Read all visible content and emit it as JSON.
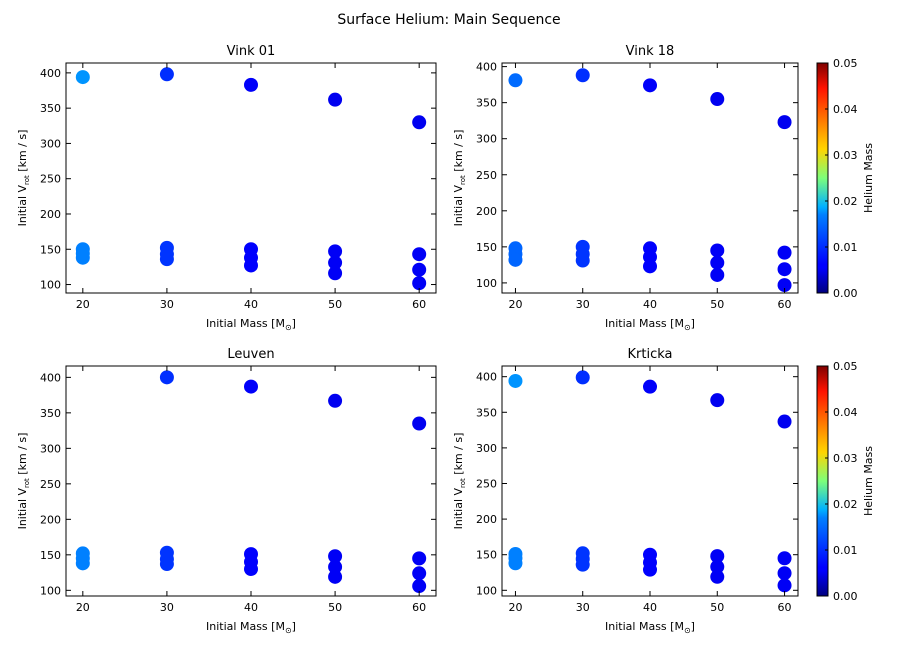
{
  "figure": {
    "suptitle": "Surface Helium: Main Sequence",
    "xlabel": "Initial Mass [M",
    "xlabel_sym": "⊙",
    "xlabel_close": "]",
    "ylabel_pre": "Initial V",
    "ylabel_sub": "rot",
    "ylabel_post": " [km / s]",
    "colorbar_label": "Helium Mass",
    "colorbar_ticks": [
      "0.00",
      "0.01",
      "0.02",
      "0.03",
      "0.04",
      "0.05"
    ],
    "colormap": "jet",
    "colorbar_range": [
      0.0,
      0.05
    ]
  },
  "chart_data": [
    {
      "type": "scatter",
      "title": "Vink 01",
      "xlabel": "Initial Mass [M⊙]",
      "ylabel": "Initial Vrot [km / s]",
      "xlim": [
        18,
        62
      ],
      "ylim": [
        88,
        414
      ],
      "xticks": [
        20,
        30,
        40,
        50,
        60
      ],
      "yticks": [
        100,
        150,
        200,
        250,
        300,
        350,
        400
      ],
      "points": [
        {
          "x": 20,
          "y": 394,
          "he": 0.0135
        },
        {
          "x": 20,
          "y": 150,
          "he": 0.0125
        },
        {
          "x": 20,
          "y": 144,
          "he": 0.0125
        },
        {
          "x": 20,
          "y": 138,
          "he": 0.0125
        },
        {
          "x": 30,
          "y": 398,
          "he": 0.0085
        },
        {
          "x": 30,
          "y": 152,
          "he": 0.0088
        },
        {
          "x": 30,
          "y": 143,
          "he": 0.0088
        },
        {
          "x": 30,
          "y": 136,
          "he": 0.0088
        },
        {
          "x": 40,
          "y": 383,
          "he": 0.006
        },
        {
          "x": 40,
          "y": 150,
          "he": 0.0062
        },
        {
          "x": 40,
          "y": 138,
          "he": 0.0062
        },
        {
          "x": 40,
          "y": 127,
          "he": 0.0062
        },
        {
          "x": 50,
          "y": 362,
          "he": 0.0055
        },
        {
          "x": 50,
          "y": 147,
          "he": 0.0058
        },
        {
          "x": 50,
          "y": 131,
          "he": 0.0058
        },
        {
          "x": 50,
          "y": 116,
          "he": 0.0058
        },
        {
          "x": 60,
          "y": 330,
          "he": 0.0055
        },
        {
          "x": 60,
          "y": 143,
          "he": 0.0058
        },
        {
          "x": 60,
          "y": 121,
          "he": 0.0058
        },
        {
          "x": 60,
          "y": 102,
          "he": 0.0058
        }
      ]
    },
    {
      "type": "scatter",
      "title": "Vink 18",
      "xlabel": "Initial Mass [M⊙]",
      "ylabel": "Initial Vrot [km / s]",
      "xlim": [
        18,
        62
      ],
      "ylim": [
        86,
        405
      ],
      "xticks": [
        20,
        30,
        40,
        50,
        60
      ],
      "yticks": [
        100,
        150,
        200,
        250,
        300,
        350,
        400
      ],
      "points": [
        {
          "x": 20,
          "y": 381,
          "he": 0.0115
        },
        {
          "x": 20,
          "y": 148,
          "he": 0.0112
        },
        {
          "x": 20,
          "y": 140,
          "he": 0.0112
        },
        {
          "x": 20,
          "y": 132,
          "he": 0.0112
        },
        {
          "x": 30,
          "y": 388,
          "he": 0.0085
        },
        {
          "x": 30,
          "y": 150,
          "he": 0.0088
        },
        {
          "x": 30,
          "y": 140,
          "he": 0.0088
        },
        {
          "x": 30,
          "y": 131,
          "he": 0.0088
        },
        {
          "x": 40,
          "y": 374,
          "he": 0.006
        },
        {
          "x": 40,
          "y": 148,
          "he": 0.0062
        },
        {
          "x": 40,
          "y": 136,
          "he": 0.0062
        },
        {
          "x": 40,
          "y": 123,
          "he": 0.0062
        },
        {
          "x": 50,
          "y": 355,
          "he": 0.0055
        },
        {
          "x": 50,
          "y": 145,
          "he": 0.0058
        },
        {
          "x": 50,
          "y": 128,
          "he": 0.0058
        },
        {
          "x": 50,
          "y": 111,
          "he": 0.0058
        },
        {
          "x": 60,
          "y": 323,
          "he": 0.0055
        },
        {
          "x": 60,
          "y": 142,
          "he": 0.0058
        },
        {
          "x": 60,
          "y": 119,
          "he": 0.0058
        },
        {
          "x": 60,
          "y": 97,
          "he": 0.0058
        }
      ]
    },
    {
      "type": "scatter",
      "title": "Leuven",
      "xlabel": "Initial Mass [M⊙]",
      "ylabel": "Initial Vrot [km / s]",
      "xlim": [
        18,
        62
      ],
      "ylim": [
        92,
        416
      ],
      "xticks": [
        20,
        30,
        40,
        50,
        60
      ],
      "yticks": [
        100,
        150,
        200,
        250,
        300,
        350,
        400
      ],
      "points": [
        {
          "x": 20,
          "y": 152,
          "he": 0.0125
        },
        {
          "x": 20,
          "y": 145,
          "he": 0.0125
        },
        {
          "x": 20,
          "y": 138,
          "he": 0.0125
        },
        {
          "x": 30,
          "y": 400,
          "he": 0.0085
        },
        {
          "x": 30,
          "y": 153,
          "he": 0.0088
        },
        {
          "x": 30,
          "y": 144,
          "he": 0.0088
        },
        {
          "x": 30,
          "y": 137,
          "he": 0.0088
        },
        {
          "x": 40,
          "y": 387,
          "he": 0.006
        },
        {
          "x": 40,
          "y": 151,
          "he": 0.0062
        },
        {
          "x": 40,
          "y": 140,
          "he": 0.0062
        },
        {
          "x": 40,
          "y": 130,
          "he": 0.0062
        },
        {
          "x": 50,
          "y": 367,
          "he": 0.0055
        },
        {
          "x": 50,
          "y": 148,
          "he": 0.0058
        },
        {
          "x": 50,
          "y": 133,
          "he": 0.0058
        },
        {
          "x": 50,
          "y": 119,
          "he": 0.0058
        },
        {
          "x": 60,
          "y": 335,
          "he": 0.0055
        },
        {
          "x": 60,
          "y": 145,
          "he": 0.0058
        },
        {
          "x": 60,
          "y": 124,
          "he": 0.0058
        },
        {
          "x": 60,
          "y": 106,
          "he": 0.0058
        }
      ]
    },
    {
      "type": "scatter",
      "title": "Krticka",
      "xlabel": "Initial Mass [M⊙]",
      "ylabel": "Initial Vrot [km / s]",
      "xlim": [
        18,
        62
      ],
      "ylim": [
        92,
        415
      ],
      "xticks": [
        20,
        30,
        40,
        50,
        60
      ],
      "yticks": [
        100,
        150,
        200,
        250,
        300,
        350,
        400
      ],
      "points": [
        {
          "x": 20,
          "y": 394,
          "he": 0.0135
        },
        {
          "x": 20,
          "y": 151,
          "he": 0.0125
        },
        {
          "x": 20,
          "y": 145,
          "he": 0.0125
        },
        {
          "x": 20,
          "y": 138,
          "he": 0.0125
        },
        {
          "x": 30,
          "y": 399,
          "he": 0.0085
        },
        {
          "x": 30,
          "y": 152,
          "he": 0.0088
        },
        {
          "x": 30,
          "y": 144,
          "he": 0.0088
        },
        {
          "x": 30,
          "y": 136,
          "he": 0.0088
        },
        {
          "x": 40,
          "y": 386,
          "he": 0.006
        },
        {
          "x": 40,
          "y": 150,
          "he": 0.0062
        },
        {
          "x": 40,
          "y": 139,
          "he": 0.0062
        },
        {
          "x": 40,
          "y": 129,
          "he": 0.0062
        },
        {
          "x": 50,
          "y": 367,
          "he": 0.0055
        },
        {
          "x": 50,
          "y": 148,
          "he": 0.0058
        },
        {
          "x": 50,
          "y": 133,
          "he": 0.0058
        },
        {
          "x": 50,
          "y": 119,
          "he": 0.0058
        },
        {
          "x": 60,
          "y": 337,
          "he": 0.0055
        },
        {
          "x": 60,
          "y": 145,
          "he": 0.0058
        },
        {
          "x": 60,
          "y": 124,
          "he": 0.0058
        },
        {
          "x": 60,
          "y": 107,
          "he": 0.0058
        }
      ]
    }
  ]
}
